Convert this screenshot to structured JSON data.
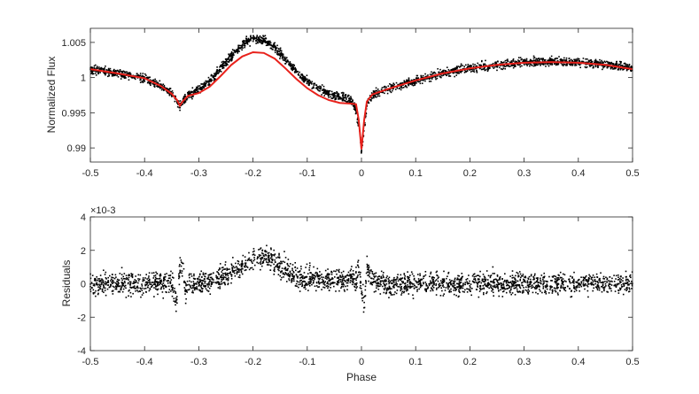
{
  "chart_data": [
    {
      "type": "scatter",
      "panel": "top",
      "xlabel": "",
      "ylabel": "Normalized Flux",
      "xlim": [
        -0.5,
        0.5
      ],
      "ylim": [
        0.988,
        1.007
      ],
      "xticks": [
        -0.5,
        -0.4,
        -0.3,
        -0.2,
        -0.1,
        0,
        0.1,
        0.2,
        0.3,
        0.4,
        0.5
      ],
      "xtick_labels": [
        "-0.5",
        "-0.4",
        "-0.3",
        "-0.2",
        "-0.1",
        "0",
        "0.1",
        "0.2",
        "0.3",
        "0.4",
        "0.5"
      ],
      "yticks": [
        0.99,
        0.995,
        1.0,
        1.005
      ],
      "ytick_labels": [
        "0.99",
        "0.995",
        "1",
        "1.005"
      ],
      "grid": false,
      "legend": "none",
      "series": [
        {
          "kind": "data-points",
          "color": "#000000",
          "x": [
            -0.5,
            -0.45,
            -0.4,
            -0.37,
            -0.35,
            -0.34,
            -0.335,
            -0.33,
            -0.32,
            -0.3,
            -0.28,
            -0.26,
            -0.24,
            -0.22,
            -0.2,
            -0.18,
            -0.16,
            -0.14,
            -0.12,
            -0.1,
            -0.08,
            -0.06,
            -0.04,
            -0.02,
            -0.01,
            -0.005,
            0,
            0.005,
            0.01,
            0.02,
            0.05,
            0.1,
            0.15,
            0.2,
            0.25,
            0.3,
            0.35,
            0.4,
            0.45,
            0.5
          ],
          "y": [
            1.0012,
            1.0006,
            0.9999,
            0.9988,
            0.9977,
            0.9966,
            0.9958,
            0.9964,
            0.9975,
            0.9982,
            0.9995,
            1.0013,
            1.0031,
            1.0046,
            1.0055,
            1.0054,
            1.0043,
            1.0026,
            1.0009,
            0.9995,
            0.9985,
            0.9977,
            0.9972,
            0.9969,
            0.9955,
            0.9928,
            0.9895,
            0.9925,
            0.9962,
            0.9976,
            0.9984,
            0.9996,
            1.0006,
            1.0013,
            1.0018,
            1.0022,
            1.0023,
            1.0022,
            1.0019,
            1.0013
          ]
        },
        {
          "kind": "model-fit",
          "color": "#e8211b",
          "x": [
            -0.5,
            -0.45,
            -0.4,
            -0.37,
            -0.35,
            -0.34,
            -0.335,
            -0.33,
            -0.32,
            -0.3,
            -0.28,
            -0.26,
            -0.24,
            -0.22,
            -0.2,
            -0.18,
            -0.16,
            -0.14,
            -0.12,
            -0.1,
            -0.08,
            -0.06,
            -0.04,
            -0.02,
            -0.01,
            -0.005,
            0,
            0.005,
            0.01,
            0.02,
            0.05,
            0.1,
            0.15,
            0.2,
            0.25,
            0.3,
            0.35,
            0.4,
            0.45,
            0.5
          ],
          "y": [
            1.0012,
            1.0006,
            0.9999,
            0.9988,
            0.9977,
            0.9968,
            0.996,
            0.9966,
            0.9974,
            0.9978,
            0.9987,
            1.0002,
            1.0018,
            1.003,
            1.0036,
            1.0035,
            1.0027,
            1.0013,
            0.9998,
            0.9985,
            0.9975,
            0.9968,
            0.9964,
            0.9963,
            0.9962,
            0.994,
            0.9898,
            0.994,
            0.9966,
            0.9976,
            0.9984,
            0.9996,
            1.0006,
            1.0013,
            1.0018,
            1.0021,
            1.0022,
            1.0021,
            1.0018,
            1.0012
          ]
        }
      ]
    },
    {
      "type": "scatter",
      "panel": "bottom",
      "xlabel": "Phase",
      "ylabel": "Residuals",
      "y_exponent": "×10-3",
      "xlim": [
        -0.5,
        0.5
      ],
      "ylim": [
        -4,
        4
      ],
      "xticks": [
        -0.5,
        -0.4,
        -0.3,
        -0.2,
        -0.1,
        0,
        0.1,
        0.2,
        0.3,
        0.4,
        0.5
      ],
      "xtick_labels": [
        "-0.5",
        "-0.4",
        "-0.3",
        "-0.2",
        "-0.1",
        "0",
        "0.1",
        "0.2",
        "0.3",
        "0.4",
        "0.5"
      ],
      "yticks": [
        -4,
        -2,
        0,
        2,
        4
      ],
      "ytick_labels": [
        "-4",
        "-2",
        "0",
        "2",
        "4"
      ],
      "grid": false,
      "legend": "none",
      "series": [
        {
          "kind": "residuals",
          "color": "#000000",
          "x": [
            -0.5,
            -0.4,
            -0.35,
            -0.34,
            -0.335,
            -0.33,
            -0.325,
            -0.32,
            -0.3,
            -0.25,
            -0.22,
            -0.2,
            -0.18,
            -0.16,
            -0.14,
            -0.12,
            -0.1,
            -0.05,
            -0.02,
            -0.01,
            -0.005,
            0,
            0.005,
            0.01,
            0.02,
            0.05,
            0.1,
            0.2,
            0.3,
            0.4,
            0.5
          ],
          "y": [
            0,
            0,
            0,
            -0.9,
            0.8,
            1.0,
            -0.5,
            0,
            0,
            0.5,
            1.1,
            1.5,
            1.6,
            1.3,
            0.9,
            0.4,
            0.3,
            0.3,
            0.3,
            0.2,
            1.2,
            -0.3,
            -1.4,
            1.0,
            0.2,
            0,
            0,
            0,
            0,
            0,
            0
          ],
          "scatter_halfwidth": 0.6
        }
      ]
    }
  ]
}
